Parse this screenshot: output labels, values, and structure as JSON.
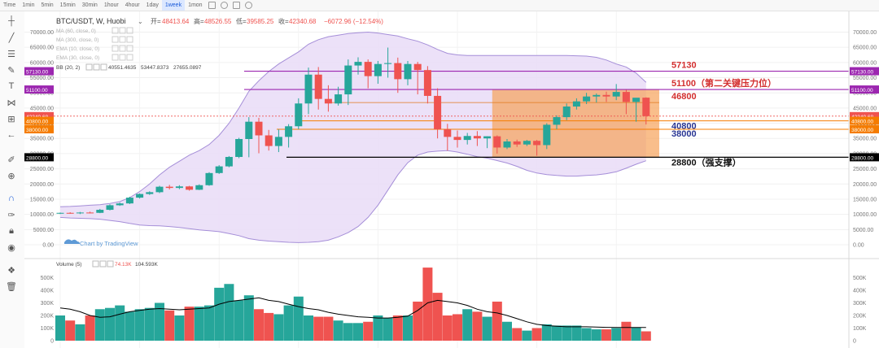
{
  "timeframes": [
    {
      "label": "Time",
      "active": false
    },
    {
      "label": "1min",
      "active": false
    },
    {
      "label": "5min",
      "active": false
    },
    {
      "label": "15min",
      "active": false
    },
    {
      "label": "30min",
      "active": false
    },
    {
      "label": "1hour",
      "active": false
    },
    {
      "label": "4hour",
      "active": false
    },
    {
      "label": "1day",
      "active": false
    },
    {
      "label": "1week",
      "active": true
    },
    {
      "label": "1mon",
      "active": false
    }
  ],
  "toolbar_icons": [
    "crosshair-icon",
    "trendline-icon",
    "fib-lines-icon",
    "brush-icon",
    "text-icon",
    "pattern-icon",
    "measure-icon",
    "arrow-left-icon",
    "ruler-icon",
    "zoom-in-icon",
    "magnet-icon",
    "lock-draw-icon",
    "lock-icon",
    "eye-icon",
    "layers-icon",
    "trash-icon"
  ],
  "header": {
    "symbol": "BTC/USDT, W, Huobi",
    "open_label": "开=",
    "open": "48413.64",
    "high_label": "高=",
    "high": "48526.55",
    "low_label": "低=",
    "low": "39585.25",
    "close_label": "收=",
    "close": "42340.68",
    "change": "−6072.96 (−12.54%)"
  },
  "indicators": [
    {
      "label": "MA (60, close, 0)"
    },
    {
      "label": "MA (300, close, 0)"
    },
    {
      "label": "EMA (10, close, 0)"
    },
    {
      "label": "EMA (30, close, 0)"
    }
  ],
  "bb": {
    "label": "BB (20, 2)",
    "v1": "40551.4635",
    "v2": "53447.8373",
    "v3": "27655.0897"
  },
  "volume": {
    "label": "Volume (5)",
    "v1": "74.13K",
    "v2": "104.593K"
  },
  "watermark": "Chart by TradingView",
  "colors": {
    "up": "#26a69a",
    "down": "#ef5350",
    "bb_fill": "#e9dcf7",
    "bb_line": "#a58ed8",
    "zone": "#f6a35a",
    "purple": "#9c27b0",
    "orange": "#f57c00",
    "navy": "#283593",
    "black": "#000000",
    "red": "#d32f2f"
  },
  "chart_data": {
    "type": "candlestick",
    "price_axis": {
      "range": [
        0,
        72000
      ],
      "ticks": [
        "0.00",
        "5000.00",
        "10000.00",
        "15000.00",
        "20000.00",
        "25000.00",
        "30000.00",
        "35000.00",
        "40000.00",
        "45000.00",
        "50000.00",
        "55000.00",
        "60000.00",
        "65000.00",
        "70000.00"
      ]
    },
    "volume_axis": {
      "range": [
        0,
        600000
      ],
      "ticks": [
        "0",
        "100K",
        "200K",
        "300K",
        "400K",
        "500K"
      ]
    },
    "candles": [
      {
        "o": 10300,
        "h": 10600,
        "l": 10100,
        "c": 10500
      },
      {
        "o": 10500,
        "h": 10700,
        "l": 10200,
        "c": 10400
      },
      {
        "o": 10400,
        "h": 10800,
        "l": 10100,
        "c": 10600
      },
      {
        "o": 10600,
        "h": 10900,
        "l": 10300,
        "c": 10500
      },
      {
        "o": 10500,
        "h": 11800,
        "l": 10400,
        "c": 11500
      },
      {
        "o": 11500,
        "h": 13300,
        "l": 11300,
        "c": 13000
      },
      {
        "o": 13000,
        "h": 13900,
        "l": 12800,
        "c": 13600
      },
      {
        "o": 13600,
        "h": 15800,
        "l": 13400,
        "c": 15500
      },
      {
        "o": 15500,
        "h": 16900,
        "l": 15200,
        "c": 16700
      },
      {
        "o": 16700,
        "h": 17600,
        "l": 16400,
        "c": 17300
      },
      {
        "o": 17300,
        "h": 19400,
        "l": 17000,
        "c": 19100
      },
      {
        "o": 19100,
        "h": 19700,
        "l": 18200,
        "c": 18700
      },
      {
        "o": 18700,
        "h": 19600,
        "l": 18300,
        "c": 19200
      },
      {
        "o": 19200,
        "h": 19400,
        "l": 17800,
        "c": 18100
      },
      {
        "o": 18100,
        "h": 19900,
        "l": 18000,
        "c": 19600
      },
      {
        "o": 19600,
        "h": 23900,
        "l": 19400,
        "c": 23600
      },
      {
        "o": 23600,
        "h": 26200,
        "l": 23300,
        "c": 25800
      },
      {
        "o": 25800,
        "h": 29200,
        "l": 25500,
        "c": 28900
      },
      {
        "o": 28900,
        "h": 35200,
        "l": 28500,
        "c": 34800
      },
      {
        "o": 34800,
        "h": 42000,
        "l": 28800,
        "c": 40500
      },
      {
        "o": 40500,
        "h": 41800,
        "l": 30100,
        "c": 36000
      },
      {
        "o": 36000,
        "h": 37800,
        "l": 31000,
        "c": 32500
      },
      {
        "o": 32500,
        "h": 38000,
        "l": 30500,
        "c": 35500
      },
      {
        "o": 35500,
        "h": 39700,
        "l": 32000,
        "c": 39000
      },
      {
        "o": 39000,
        "h": 48200,
        "l": 38000,
        "c": 46500
      },
      {
        "o": 46500,
        "h": 58300,
        "l": 43000,
        "c": 56000
      },
      {
        "o": 56000,
        "h": 58500,
        "l": 44500,
        "c": 48000
      },
      {
        "o": 48000,
        "h": 52500,
        "l": 43800,
        "c": 46500
      },
      {
        "o": 46500,
        "h": 52000,
        "l": 45800,
        "c": 49500
      },
      {
        "o": 49500,
        "h": 61000,
        "l": 46000,
        "c": 59000
      },
      {
        "o": 59000,
        "h": 61700,
        "l": 56000,
        "c": 60200
      },
      {
        "o": 60200,
        "h": 61000,
        "l": 51500,
        "c": 55500
      },
      {
        "o": 55500,
        "h": 60500,
        "l": 53000,
        "c": 59500
      },
      {
        "o": 59500,
        "h": 64900,
        "l": 55000,
        "c": 59800
      },
      {
        "o": 59800,
        "h": 61600,
        "l": 50000,
        "c": 54500
      },
      {
        "o": 54500,
        "h": 60500,
        "l": 52500,
        "c": 59500
      },
      {
        "o": 59500,
        "h": 60200,
        "l": 49500,
        "c": 57500
      },
      {
        "o": 57500,
        "h": 58800,
        "l": 46500,
        "c": 49000
      },
      {
        "o": 49000,
        "h": 51500,
        "l": 35000,
        "c": 38000
      },
      {
        "o": 38000,
        "h": 39800,
        "l": 31000,
        "c": 35500
      },
      {
        "o": 35500,
        "h": 37600,
        "l": 32000,
        "c": 34500
      },
      {
        "o": 34500,
        "h": 36800,
        "l": 33000,
        "c": 35800
      },
      {
        "o": 35800,
        "h": 37400,
        "l": 32500,
        "c": 35000
      },
      {
        "o": 35000,
        "h": 35700,
        "l": 31800,
        "c": 35700
      },
      {
        "o": 35700,
        "h": 36000,
        "l": 30000,
        "c": 32000
      },
      {
        "o": 32000,
        "h": 34800,
        "l": 31500,
        "c": 34000
      },
      {
        "o": 34000,
        "h": 34600,
        "l": 32200,
        "c": 33000
      },
      {
        "o": 33000,
        "h": 34500,
        "l": 32500,
        "c": 34200
      },
      {
        "o": 34200,
        "h": 34500,
        "l": 29300,
        "c": 32800
      },
      {
        "o": 32800,
        "h": 40000,
        "l": 31500,
        "c": 39500
      },
      {
        "o": 39500,
        "h": 42600,
        "l": 38000,
        "c": 42000
      },
      {
        "o": 42000,
        "h": 46500,
        "l": 41000,
        "c": 45500
      },
      {
        "o": 45500,
        "h": 48200,
        "l": 44500,
        "c": 47200
      },
      {
        "o": 47200,
        "h": 50000,
        "l": 46300,
        "c": 48800
      },
      {
        "o": 48800,
        "h": 49800,
        "l": 46800,
        "c": 49300
      },
      {
        "o": 49300,
        "h": 50400,
        "l": 47000,
        "c": 48800
      },
      {
        "o": 48800,
        "h": 52900,
        "l": 47600,
        "c": 50300
      },
      {
        "o": 50300,
        "h": 51000,
        "l": 43000,
        "c": 47000
      },
      {
        "o": 47000,
        "h": 48000,
        "l": 40500,
        "c": 48400
      },
      {
        "o": 48413.64,
        "h": 48526.55,
        "l": 39585.25,
        "c": 42340.68
      }
    ],
    "volumes": [
      200000,
      160000,
      130000,
      200000,
      250000,
      260000,
      280000,
      230000,
      250000,
      260000,
      300000,
      240000,
      200000,
      270000,
      270000,
      280000,
      420000,
      450000,
      320000,
      360000,
      250000,
      220000,
      210000,
      280000,
      350000,
      200000,
      190000,
      190000,
      160000,
      140000,
      140000,
      150000,
      200000,
      180000,
      200000,
      200000,
      310000,
      580000,
      380000,
      200000,
      210000,
      250000,
      230000,
      190000,
      310000,
      150000,
      100000,
      80000,
      100000,
      130000,
      120000,
      120000,
      120000,
      100000,
      90000,
      90000,
      100000,
      150000,
      105000,
      74130
    ],
    "volume_ma": [
      260000,
      250000,
      230000,
      200000,
      185000,
      190000,
      210000,
      230000,
      240000,
      250000,
      255000,
      250000,
      245000,
      250000,
      255000,
      260000,
      290000,
      310000,
      320000,
      330000,
      340000,
      320000,
      310000,
      290000,
      270000,
      255000,
      245000,
      225000,
      210000,
      200000,
      190000,
      185000,
      180000,
      180000,
      185000,
      195000,
      240000,
      300000,
      320000,
      310000,
      300000,
      280000,
      250000,
      230000,
      220000,
      200000,
      175000,
      150000,
      130000,
      120000,
      115000,
      110000,
      110000,
      110000,
      108000,
      106000,
      105000,
      104593,
      104593,
      104593
    ],
    "bollinger": {
      "upper": [
        12500,
        12600,
        12800,
        13000,
        13200,
        13600,
        14200,
        15500,
        17500,
        20000,
        23000,
        25500,
        27500,
        29500,
        31000,
        33000,
        36000,
        40000,
        45000,
        50500,
        54000,
        57000,
        59500,
        61500,
        63500,
        66000,
        67500,
        68500,
        69000,
        69500,
        69800,
        70000,
        69700,
        69200,
        68700,
        67800,
        67000,
        65800,
        64300,
        63000,
        62500,
        62300,
        62300,
        62300,
        62300,
        62300,
        62300,
        62300,
        62300,
        62300,
        62300,
        62300,
        62200,
        62100,
        61700,
        60800,
        59500,
        58500,
        56500,
        53447.8373
      ],
      "middle": [
        10200,
        10200,
        10300,
        10400,
        10500,
        10700,
        11000,
        11600,
        12400,
        13400,
        14500,
        15500,
        16400,
        17200,
        17800,
        18700,
        20000,
        21600,
        23500,
        25800,
        28000,
        30000,
        31800,
        33600,
        35500,
        37500,
        39300,
        40800,
        42000,
        43000,
        44000,
        45000,
        45800,
        46500,
        47000,
        47200,
        47300,
        47000,
        46500,
        45800,
        45000,
        44200,
        43400,
        42600,
        41900,
        41300,
        40800,
        40400,
        40100,
        40000,
        40000,
        40100,
        40200,
        40300,
        40400,
        40500,
        40500,
        40550,
        40550,
        40551.4635
      ],
      "lower": [
        9000,
        8800,
        8700,
        8600,
        8400,
        8000,
        7600,
        7000,
        6500,
        6300,
        6200,
        6000,
        5700,
        5300,
        4900,
        4600,
        4300,
        3700,
        3000,
        2000,
        1500,
        1200,
        1000,
        800,
        700,
        800,
        1000,
        1500,
        2600,
        4000,
        6000,
        9000,
        13000,
        18000,
        23000,
        27000,
        29500,
        30500,
        30800,
        31000,
        30500,
        29800,
        29000,
        28500,
        27700,
        26900,
        25800,
        24500,
        23600,
        23100,
        22800,
        22600,
        22600,
        22800,
        23000,
        23400,
        24000,
        25200,
        26500,
        27655.0897
      ]
    },
    "zone": {
      "low": 28800,
      "high": 51100,
      "note": "highlight box behind the last 16 weekly candles"
    },
    "levels": [
      {
        "value": 57130,
        "label": "57130",
        "axis_tag": "57130.00"
      },
      {
        "value": 51100,
        "label": "51100（第二关键压力位）",
        "axis_tag": "51100.00"
      },
      {
        "value": 46800,
        "label": "46800",
        "axis_tag": ""
      },
      {
        "value": 42340.68,
        "label": "",
        "axis_tag": "42340.68"
      },
      {
        "value": 40800,
        "label": "40800",
        "axis_tag": "40800.00"
      },
      {
        "value": 38000,
        "label": "38000",
        "axis_tag": "38000.00"
      },
      {
        "value": 28800,
        "label": "28800（强支撑）",
        "axis_tag": "28800.00"
      }
    ]
  }
}
